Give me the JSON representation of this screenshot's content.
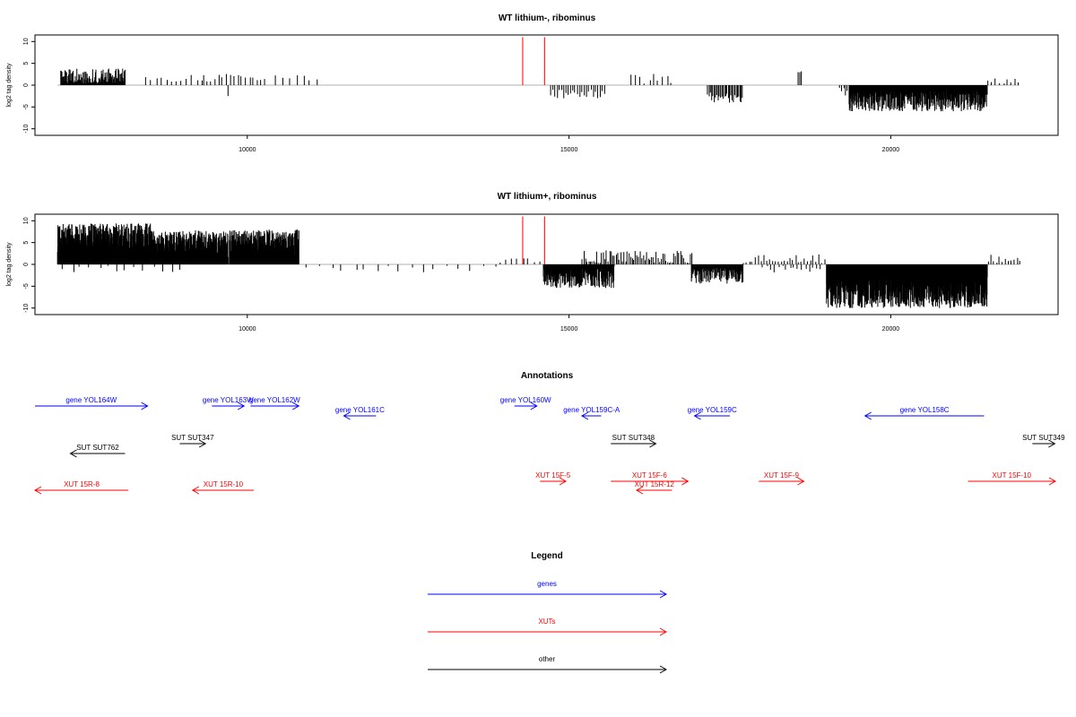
{
  "colors": {
    "gene": "#0000ff",
    "xut": "#ff0000",
    "other": "#000000",
    "axis": "#000000",
    "baseline": "#999999",
    "bar": "#000000",
    "highlight": "#ff0000"
  },
  "chart_data": [
    {
      "type": "bar",
      "title": "WT lithium-, ribominus",
      "ylabel": "log2 tag density",
      "xlim": [
        6700,
        22600
      ],
      "ylim": [
        -11.5,
        11.5
      ],
      "x_ticks": [
        10000,
        15000,
        20000
      ],
      "x_tick_labels": [
        "10000",
        "15000",
        "20000"
      ],
      "y_ticks": [
        10,
        5,
        0,
        -5,
        -10
      ],
      "y_tick_labels": [
        "10",
        "5",
        "0",
        "-5",
        "-10"
      ],
      "highlight_bars": [
        {
          "x": 14280,
          "value": 11
        },
        {
          "x": 14620,
          "value": 11
        }
      ],
      "signal_segments": [
        {
          "start": 7100,
          "end": 8100,
          "mean": 2.0,
          "amp": 1.8,
          "step": 8
        },
        {
          "start": 8400,
          "end": 9300,
          "mean": 1.6,
          "amp": 0.8,
          "step": 80
        },
        {
          "start": 9300,
          "end": 10300,
          "mean": 1.8,
          "amp": 1.0,
          "step": 60
        },
        {
          "start": 10400,
          "end": 11100,
          "mean": 1.6,
          "amp": 0.8,
          "step": 110
        },
        {
          "start": 9700,
          "end": 9700,
          "mean": -2.5,
          "amp": 0,
          "step": 1
        },
        {
          "start": 14700,
          "end": 15550,
          "mean": -2.0,
          "amp": 1.0,
          "step": 35
        },
        {
          "start": 15950,
          "end": 16600,
          "mean": 1.5,
          "amp": 1.4,
          "step": 70
        },
        {
          "start": 17150,
          "end": 17700,
          "mean": -2.8,
          "amp": 1.2,
          "step": 20
        },
        {
          "start": 18550,
          "end": 18600,
          "mean": 3.0,
          "amp": 0.2,
          "step": 25
        },
        {
          "start": 19200,
          "end": 19350,
          "mean": -1.5,
          "amp": 1.0,
          "step": 30
        },
        {
          "start": 19350,
          "end": 21500,
          "mean": -3.6,
          "amp": 2.4,
          "step": 6
        },
        {
          "start": 21500,
          "end": 22000,
          "mean": 0.9,
          "amp": 0.7,
          "step": 60
        }
      ]
    },
    {
      "type": "bar",
      "title": "WT lithium+, ribominus",
      "ylabel": "log2 tag density",
      "xlim": [
        6700,
        22600
      ],
      "ylim": [
        -11.5,
        11.5
      ],
      "x_ticks": [
        10000,
        15000,
        20000
      ],
      "x_tick_labels": [
        "10000",
        "15000",
        "20000"
      ],
      "y_ticks": [
        10,
        5,
        0,
        -5,
        -10
      ],
      "y_tick_labels": [
        "10",
        "5",
        "0",
        "-5",
        "-10"
      ],
      "highlight_bars": [
        {
          "x": 14280,
          "value": 11
        },
        {
          "x": 14620,
          "value": 11
        }
      ],
      "signal_segments": [
        {
          "start": 7050,
          "end": 8500,
          "mean": 5.6,
          "amp": 3.8,
          "step": 3
        },
        {
          "start": 8500,
          "end": 9700,
          "mean": 4.6,
          "amp": 3.2,
          "step": 3
        },
        {
          "start": 9720,
          "end": 10800,
          "mean": 4.6,
          "amp": 3.4,
          "step": 3
        },
        {
          "start": 7100,
          "end": 9000,
          "mean": -1.0,
          "amp": 0.8,
          "step": 140
        },
        {
          "start": 10900,
          "end": 13800,
          "mean": -0.8,
          "amp": 1.0,
          "step": 180
        },
        {
          "start": 13900,
          "end": 14600,
          "mean": 0.8,
          "amp": 0.6,
          "step": 90
        },
        {
          "start": 14600,
          "end": 15700,
          "mean": -2.8,
          "amp": 2.6,
          "step": 5
        },
        {
          "start": 15200,
          "end": 16900,
          "mean": 1.6,
          "amp": 1.6,
          "step": 25
        },
        {
          "start": 16900,
          "end": 17700,
          "mean": -2.6,
          "amp": 1.8,
          "step": 8
        },
        {
          "start": 17700,
          "end": 19000,
          "mean": 1.0,
          "amp": 1.4,
          "step": 45
        },
        {
          "start": 18000,
          "end": 18900,
          "mean": -1.2,
          "amp": 1.0,
          "step": 60
        },
        {
          "start": 19000,
          "end": 21500,
          "mean": -6.0,
          "amp": 4.0,
          "step": 3
        },
        {
          "start": 21500,
          "end": 22000,
          "mean": 1.2,
          "amp": 1.0,
          "step": 45
        }
      ]
    }
  ],
  "annotations": {
    "title": "Annotations",
    "xlim": [
      6700,
      22600
    ],
    "features": [
      {
        "label": "gene YOL164W",
        "kind": "gene",
        "start": 6700,
        "end": 8450,
        "strand": "+",
        "row": 0
      },
      {
        "label": "gene YOL163W",
        "kind": "gene",
        "start": 9450,
        "end": 9950,
        "strand": "+",
        "row": 0
      },
      {
        "label": "gene YOL162W",
        "kind": "gene",
        "start": 10050,
        "end": 10800,
        "strand": "+",
        "row": 0
      },
      {
        "label": "gene YOL161C",
        "kind": "gene",
        "start": 11500,
        "end": 12000,
        "strand": "-",
        "row": 1
      },
      {
        "label": "gene YOL160W",
        "kind": "gene",
        "start": 14150,
        "end": 14500,
        "strand": "+",
        "row": 0
      },
      {
        "label": "gene YOL159C-A",
        "kind": "gene",
        "start": 15200,
        "end": 15500,
        "strand": "-",
        "row": 1
      },
      {
        "label": "gene YOL159C",
        "kind": "gene",
        "start": 16950,
        "end": 17500,
        "strand": "-",
        "row": 1
      },
      {
        "label": "gene YOL158C",
        "kind": "gene",
        "start": 19600,
        "end": 21450,
        "strand": "-",
        "row": 1
      },
      {
        "label": "SUT SUT762",
        "kind": "other",
        "start": 7250,
        "end": 8100,
        "strand": "-",
        "row": 3
      },
      {
        "label": "SUT SUT347",
        "kind": "other",
        "start": 8950,
        "end": 9350,
        "strand": "+",
        "row": 2
      },
      {
        "label": "SUT SUT348",
        "kind": "other",
        "start": 15650,
        "end": 16350,
        "strand": "+",
        "row": 2
      },
      {
        "label": "SUT SUT349",
        "kind": "other",
        "start": 22200,
        "end": 22550,
        "strand": "+",
        "row": 2
      },
      {
        "label": "XUT 15R-8",
        "kind": "xut",
        "start": 6700,
        "end": 8150,
        "strand": "-",
        "row": 5
      },
      {
        "label": "XUT 15R-10",
        "kind": "xut",
        "start": 9150,
        "end": 10100,
        "strand": "-",
        "row": 5
      },
      {
        "label": "XUT 15F-5",
        "kind": "xut",
        "start": 14550,
        "end": 14950,
        "strand": "+",
        "row": 4
      },
      {
        "label": "XUT 15F-6",
        "kind": "xut",
        "start": 15650,
        "end": 16850,
        "strand": "+",
        "row": 4
      },
      {
        "label": "XUT 15R-12",
        "kind": "xut",
        "start": 16050,
        "end": 16600,
        "strand": "-",
        "row": 5
      },
      {
        "label": "XUT 15F-9",
        "kind": "xut",
        "start": 17950,
        "end": 18650,
        "strand": "+",
        "row": 4
      },
      {
        "label": "XUT 15F-10",
        "kind": "xut",
        "start": 21200,
        "end": 22600,
        "strand": "+",
        "row": 4
      }
    ]
  },
  "legend": {
    "title": "Legend",
    "items": [
      {
        "label": "genes",
        "kind": "gene"
      },
      {
        "label": "XUTs",
        "kind": "xut"
      },
      {
        "label": "other",
        "kind": "other"
      }
    ]
  }
}
